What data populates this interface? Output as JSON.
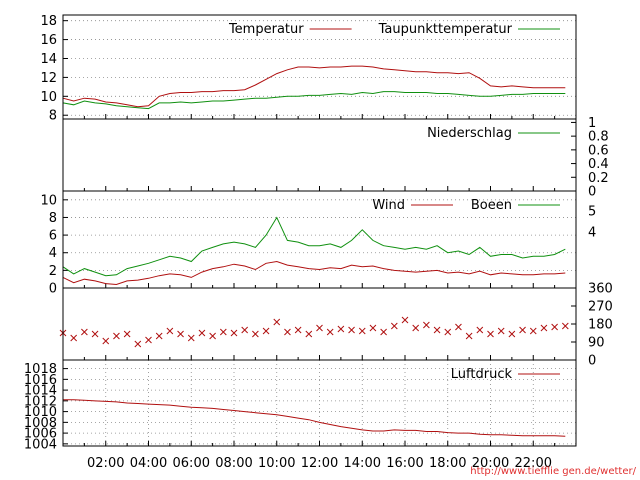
{
  "chart_data": [
    {
      "type": "line",
      "y_ticks": [
        8,
        10,
        12,
        14,
        16,
        18
      ],
      "ylim": [
        7.6,
        18.6
      ],
      "y_axis_side": "left",
      "legend_placement": "top-right",
      "grid": true,
      "series": [
        {
          "name": "Temperatur",
          "color": "#b01010",
          "x": [
            0.0,
            0.5,
            1.0,
            1.5,
            2.0,
            2.5,
            3.0,
            3.5,
            4.0,
            4.5,
            5.0,
            5.5,
            6.0,
            6.5,
            7.0,
            7.5,
            8.0,
            8.5,
            9.0,
            9.5,
            10.0,
            10.5,
            11.0,
            11.5,
            12.0,
            12.5,
            13.0,
            13.5,
            14.0,
            14.5,
            15.0,
            15.5,
            16.0,
            16.5,
            17.0,
            17.5,
            18.0,
            18.5,
            19.0,
            19.5,
            20.0,
            20.5,
            21.0,
            21.5,
            22.0,
            22.5,
            23.0,
            23.5
          ],
          "values": [
            9.8,
            9.5,
            9.8,
            9.7,
            9.4,
            9.3,
            9.1,
            8.9,
            9.0,
            10.0,
            10.3,
            10.4,
            10.4,
            10.5,
            10.5,
            10.6,
            10.6,
            10.7,
            11.2,
            11.8,
            12.4,
            12.8,
            13.1,
            13.1,
            13.0,
            13.1,
            13.1,
            13.2,
            13.2,
            13.1,
            12.9,
            12.8,
            12.7,
            12.6,
            12.6,
            12.5,
            12.5,
            12.4,
            12.5,
            11.9,
            11.1,
            11.0,
            11.1,
            11.0,
            10.9,
            10.9,
            10.9,
            10.9
          ]
        },
        {
          "name": "Taupunkttemperatur",
          "color": "#109010",
          "x": [
            0.0,
            0.5,
            1.0,
            1.5,
            2.0,
            2.5,
            3.0,
            3.5,
            4.0,
            4.5,
            5.0,
            5.5,
            6.0,
            6.5,
            7.0,
            7.5,
            8.0,
            8.5,
            9.0,
            9.5,
            10.0,
            10.5,
            11.0,
            11.5,
            12.0,
            12.5,
            13.0,
            13.5,
            14.0,
            14.5,
            15.0,
            15.5,
            16.0,
            16.5,
            17.0,
            17.5,
            18.0,
            18.5,
            19.0,
            19.5,
            20.0,
            20.5,
            21.0,
            21.5,
            22.0,
            22.5,
            23.0,
            23.5
          ],
          "values": [
            9.3,
            9.1,
            9.5,
            9.3,
            9.2,
            9.0,
            8.9,
            8.8,
            8.7,
            9.3,
            9.3,
            9.4,
            9.3,
            9.4,
            9.5,
            9.5,
            9.6,
            9.7,
            9.8,
            9.8,
            9.9,
            10.0,
            10.0,
            10.1,
            10.1,
            10.2,
            10.3,
            10.2,
            10.4,
            10.3,
            10.5,
            10.5,
            10.4,
            10.4,
            10.4,
            10.3,
            10.3,
            10.2,
            10.1,
            10.0,
            10.0,
            10.1,
            10.2,
            10.2,
            10.3,
            10.3,
            10.3,
            10.3
          ]
        }
      ]
    },
    {
      "type": "line",
      "y_ticks": [
        0,
        0.2,
        0.4,
        0.6,
        0.8,
        1
      ],
      "ylim": [
        0,
        1.05
      ],
      "y_axis_side": "right",
      "legend_placement": "top-right",
      "grid": false,
      "series": [
        {
          "name": "Niederschlag",
          "color": "#109010",
          "x": [
            0,
            24
          ],
          "values": [
            0,
            0
          ]
        }
      ]
    },
    {
      "type": "line",
      "y_ticks": [
        0,
        2,
        4,
        6,
        8,
        10
      ],
      "y_ticks_right": [
        "4",
        "5"
      ],
      "ylim": [
        0,
        11
      ],
      "y_axis_side": "left",
      "legend_placement": "top-right",
      "grid": true,
      "series": [
        {
          "name": "Wind",
          "color": "#b01010",
          "x": [
            0.0,
            0.5,
            1.0,
            1.5,
            2.0,
            2.5,
            3.0,
            3.5,
            4.0,
            4.5,
            5.0,
            5.5,
            6.0,
            6.5,
            7.0,
            7.5,
            8.0,
            8.5,
            9.0,
            9.5,
            10.0,
            10.5,
            11.0,
            11.5,
            12.0,
            12.5,
            13.0,
            13.5,
            14.0,
            14.5,
            15.0,
            15.5,
            16.0,
            16.5,
            17.0,
            17.5,
            18.0,
            18.5,
            19.0,
            19.5,
            20.0,
            20.5,
            21.0,
            21.5,
            22.0,
            22.5,
            23.0,
            23.5
          ],
          "values": [
            1.2,
            0.6,
            1.0,
            0.8,
            0.5,
            0.4,
            0.8,
            0.9,
            1.1,
            1.4,
            1.6,
            1.5,
            1.2,
            1.8,
            2.2,
            2.4,
            2.7,
            2.5,
            2.1,
            2.8,
            3.0,
            2.6,
            2.4,
            2.2,
            2.1,
            2.3,
            2.2,
            2.6,
            2.4,
            2.5,
            2.2,
            2.0,
            1.9,
            1.8,
            1.9,
            2.0,
            1.7,
            1.8,
            1.6,
            1.9,
            1.5,
            1.7,
            1.6,
            1.5,
            1.5,
            1.6,
            1.6,
            1.7
          ]
        },
        {
          "name": "Boeen",
          "color": "#109010",
          "x": [
            0.0,
            0.5,
            1.0,
            1.5,
            2.0,
            2.5,
            3.0,
            3.5,
            4.0,
            4.5,
            5.0,
            5.5,
            6.0,
            6.5,
            7.0,
            7.5,
            8.0,
            8.5,
            9.0,
            9.5,
            10.0,
            10.5,
            11.0,
            11.5,
            12.0,
            12.5,
            13.0,
            13.5,
            14.0,
            14.5,
            15.0,
            15.5,
            16.0,
            16.5,
            17.0,
            17.5,
            18.0,
            18.5,
            19.0,
            19.5,
            20.0,
            20.5,
            21.0,
            21.5,
            22.0,
            22.5,
            23.0,
            23.5
          ],
          "values": [
            2.4,
            1.6,
            2.2,
            1.8,
            1.4,
            1.5,
            2.2,
            2.5,
            2.8,
            3.2,
            3.6,
            3.4,
            3.0,
            4.2,
            4.6,
            5.0,
            5.2,
            5.0,
            4.6,
            6.0,
            8.0,
            5.4,
            5.2,
            4.8,
            4.8,
            5.0,
            4.6,
            5.4,
            6.6,
            5.4,
            4.8,
            4.6,
            4.4,
            4.6,
            4.4,
            4.8,
            4.0,
            4.2,
            3.8,
            4.6,
            3.6,
            3.8,
            3.8,
            3.4,
            3.6,
            3.6,
            3.8,
            4.4
          ]
        }
      ]
    },
    {
      "type": "scatter",
      "y_ticks": [
        0,
        90,
        180,
        270,
        360
      ],
      "ylim": [
        0,
        360
      ],
      "y_axis_side": "right",
      "grid": false,
      "series": [
        {
          "color": "#b01010",
          "x": [
            0.0,
            0.5,
            1.0,
            1.5,
            2.0,
            2.5,
            3.0,
            3.5,
            4.0,
            4.5,
            5.0,
            5.5,
            6.0,
            6.5,
            7.0,
            7.5,
            8.0,
            8.5,
            9.0,
            9.5,
            10.0,
            10.5,
            11.0,
            11.5,
            12.0,
            12.5,
            13.0,
            13.5,
            14.0,
            14.5,
            15.0,
            15.5,
            16.0,
            16.5,
            17.0,
            17.5,
            18.0,
            18.5,
            19.0,
            19.5,
            20.0,
            20.5,
            21.0,
            21.5,
            22.0,
            22.5,
            23.0,
            23.5
          ],
          "values": [
            135,
            110,
            140,
            130,
            95,
            120,
            130,
            80,
            100,
            120,
            145,
            130,
            110,
            135,
            120,
            140,
            135,
            150,
            130,
            145,
            190,
            140,
            150,
            130,
            160,
            140,
            155,
            150,
            145,
            160,
            140,
            170,
            200,
            160,
            175,
            150,
            140,
            165,
            120,
            150,
            130,
            145,
            130,
            150,
            145,
            160,
            165,
            170
          ]
        }
      ]
    },
    {
      "type": "line",
      "y_ticks": [
        1004,
        1006,
        1008,
        1010,
        1012,
        1014,
        1016,
        1018
      ],
      "ylim": [
        1003.6,
        1019.6
      ],
      "y_axis_side": "left",
      "legend_placement": "top-right",
      "grid": true,
      "x_ticks": [
        "02:00",
        "04:00",
        "06:00",
        "08:00",
        "10:00",
        "12:00",
        "14:00",
        "16:00",
        "18:00",
        "20:00",
        "22:00"
      ],
      "x_tick_values": [
        2,
        4,
        6,
        8,
        10,
        12,
        14,
        16,
        18,
        20,
        22
      ],
      "series": [
        {
          "name": "Luftdruck",
          "color": "#b01010",
          "x": [
            0.0,
            0.5,
            1.0,
            1.5,
            2.0,
            2.5,
            3.0,
            3.5,
            4.0,
            4.5,
            5.0,
            5.5,
            6.0,
            6.5,
            7.0,
            7.5,
            8.0,
            8.5,
            9.0,
            9.5,
            10.0,
            10.5,
            11.0,
            11.5,
            12.0,
            12.5,
            13.0,
            13.5,
            14.0,
            14.5,
            15.0,
            15.5,
            16.0,
            16.5,
            17.0,
            17.5,
            18.0,
            18.5,
            19.0,
            19.5,
            20.0,
            20.5,
            21.0,
            21.5,
            22.0,
            22.5,
            23.0,
            23.5
          ],
          "values": [
            1012.2,
            1012.2,
            1012.1,
            1012.0,
            1011.9,
            1011.8,
            1011.6,
            1011.5,
            1011.4,
            1011.3,
            1011.2,
            1011.0,
            1010.8,
            1010.7,
            1010.6,
            1010.4,
            1010.2,
            1010.0,
            1009.8,
            1009.6,
            1009.4,
            1009.1,
            1008.8,
            1008.5,
            1008.0,
            1007.6,
            1007.2,
            1006.9,
            1006.6,
            1006.4,
            1006.4,
            1006.6,
            1006.5,
            1006.5,
            1006.3,
            1006.3,
            1006.1,
            1006.0,
            1006.0,
            1005.8,
            1005.7,
            1005.7,
            1005.6,
            1005.5,
            1005.5,
            1005.5,
            1005.5,
            1005.4
          ]
        }
      ]
    }
  ],
  "footer": "http://www.tiefflie gen.de/wetter/"
}
